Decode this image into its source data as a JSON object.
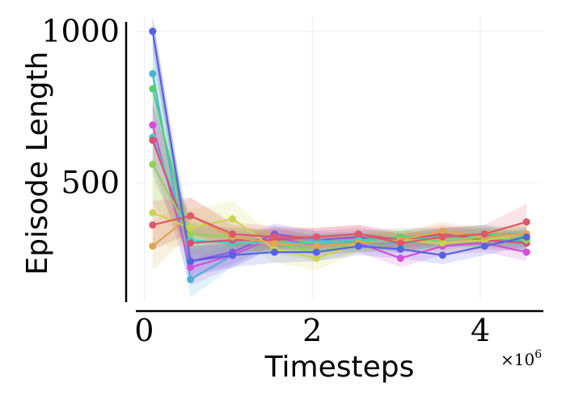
{
  "chart_data": {
    "type": "line",
    "title": "",
    "xlabel": "Timesteps",
    "ylabel": "Episode Length",
    "x_multiplier": "×10",
    "x_multiplier_exp": "6",
    "xlim": [
      -0.1,
      4.75
    ],
    "ylim": [
      110,
      1050
    ],
    "xticks": [
      0,
      2,
      4
    ],
    "xtick_labels": [
      "0",
      "2",
      "4"
    ],
    "yticks": [
      500,
      1000
    ],
    "ytick_labels": [
      "500",
      "1000"
    ],
    "grid": true,
    "legend": "none",
    "x": [
      0.1,
      0.55,
      1.05,
      1.55,
      2.05,
      2.55,
      3.05,
      3.55,
      4.05,
      4.55
    ],
    "series": [
      {
        "color": "#8b55e0",
        "values": [
          1000,
          240,
          270,
          330,
          310,
          320,
          300,
          320,
          330,
          300
        ],
        "band": [
          60,
          50,
          40,
          35,
          30,
          30,
          30,
          30,
          30,
          30
        ]
      },
      {
        "color": "#4fb1d6",
        "values": [
          860,
          180,
          260,
          320,
          310,
          300,
          300,
          310,
          320,
          300
        ],
        "band": [
          120,
          60,
          40,
          35,
          30,
          30,
          30,
          30,
          30,
          30
        ]
      },
      {
        "color": "#52d16f",
        "values": [
          810,
          300,
          310,
          310,
          300,
          310,
          320,
          320,
          330,
          320
        ],
        "band": [
          110,
          60,
          40,
          35,
          30,
          30,
          30,
          30,
          30,
          30
        ]
      },
      {
        "color": "#d24fd9",
        "values": [
          690,
          220,
          260,
          320,
          290,
          300,
          250,
          290,
          300,
          270
        ],
        "band": [
          120,
          60,
          40,
          35,
          30,
          30,
          30,
          30,
          30,
          30
        ]
      },
      {
        "color": "#3fd2c5",
        "values": [
          650,
          310,
          300,
          300,
          300,
          310,
          310,
          320,
          320,
          310
        ],
        "band": [
          120,
          60,
          40,
          35,
          30,
          30,
          30,
          30,
          30,
          30
        ]
      },
      {
        "color": "#d94f7a",
        "values": [
          640,
          300,
          310,
          310,
          320,
          330,
          310,
          330,
          310,
          300
        ],
        "band": [
          120,
          60,
          40,
          35,
          30,
          30,
          30,
          30,
          30,
          30
        ]
      },
      {
        "color": "#8ed458",
        "values": [
          560,
          330,
          320,
          300,
          270,
          300,
          310,
          310,
          320,
          310
        ],
        "band": [
          130,
          60,
          40,
          35,
          30,
          30,
          30,
          30,
          30,
          30
        ]
      },
      {
        "color": "#cbd44f",
        "values": [
          400,
          350,
          380,
          280,
          250,
          300,
          310,
          300,
          310,
          330
        ],
        "band": [
          110,
          60,
          60,
          45,
          40,
          30,
          30,
          30,
          30,
          30
        ]
      },
      {
        "color": "#e0a552",
        "values": [
          290,
          390,
          320,
          300,
          290,
          300,
          310,
          340,
          320,
          330
        ],
        "band": [
          80,
          60,
          40,
          35,
          30,
          30,
          30,
          30,
          30,
          30
        ]
      },
      {
        "color": "#e0586b",
        "values": [
          360,
          390,
          330,
          320,
          320,
          330,
          300,
          320,
          330,
          370
        ],
        "band": [
          80,
          60,
          40,
          35,
          30,
          30,
          30,
          30,
          30,
          60
        ]
      },
      {
        "color": "#5564e0",
        "values": [
          1000,
          240,
          260,
          270,
          270,
          290,
          280,
          260,
          290,
          320
        ],
        "band": [
          60,
          50,
          40,
          35,
          30,
          30,
          30,
          30,
          30,
          30
        ]
      }
    ]
  }
}
